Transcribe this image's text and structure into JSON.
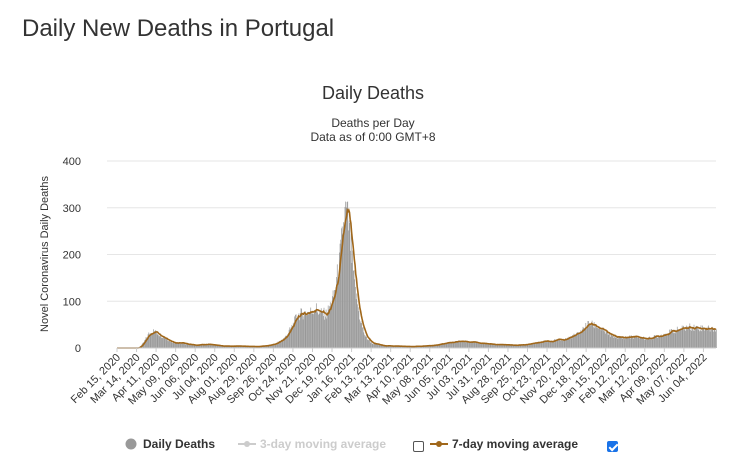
{
  "page_title": "Daily New Deaths in Portugal",
  "chart_data": {
    "type": "bar",
    "title": "Daily Deaths",
    "subtitle_lines": [
      "Deaths per Day",
      "Data as of 0:00 GMT+8"
    ],
    "ylabel": "Novel Coronavirus Daily Deaths",
    "xlabel": "",
    "ylim": [
      0,
      400
    ],
    "yticks": [
      0,
      100,
      200,
      300,
      400
    ],
    "grid": true,
    "x_start": "2020-02-15",
    "x_end": "2022-06-22",
    "x_tick_labels": [
      "Feb 15, 2020",
      "Mar 14, 2020",
      "Apr 11, 2020",
      "May 09, 2020",
      "Jun 06, 2020",
      "Jul 04, 2020",
      "Aug 01, 2020",
      "Aug 29, 2020",
      "Sep 26, 2020",
      "Oct 24, 2020",
      "Nov 21, 2020",
      "Dec 19, 2020",
      "Jan 16, 2021",
      "Feb 13, 2021",
      "Mar 13, 2021",
      "Apr 10, 2021",
      "May 08, 2021",
      "Jun 05, 2021",
      "Jul 03, 2021",
      "Jul 31, 2021",
      "Aug 28, 2021",
      "Sep 25, 2021",
      "Oct 23, 2021",
      "Nov 20, 2021",
      "Dec 18, 2021",
      "Jan 15, 2022",
      "Feb 12, 2022",
      "Mar 12, 2022",
      "Apr 09, 2022",
      "May 07, 2022",
      "Jun 04, 2022"
    ],
    "series": [
      {
        "name": "Daily Deaths",
        "kind": "bar",
        "color": "#999999",
        "anchor_points": [
          {
            "day": 0,
            "value": 0
          },
          {
            "day": 30,
            "value": 0
          },
          {
            "day": 37,
            "value": 10
          },
          {
            "day": 45,
            "value": 30
          },
          {
            "day": 52,
            "value": 36
          },
          {
            "day": 60,
            "value": 30
          },
          {
            "day": 70,
            "value": 20
          },
          {
            "day": 80,
            "value": 12
          },
          {
            "day": 95,
            "value": 10
          },
          {
            "day": 110,
            "value": 6
          },
          {
            "day": 130,
            "value": 8
          },
          {
            "day": 150,
            "value": 4
          },
          {
            "day": 175,
            "value": 4
          },
          {
            "day": 200,
            "value": 3
          },
          {
            "day": 215,
            "value": 5
          },
          {
            "day": 228,
            "value": 10
          },
          {
            "day": 240,
            "value": 22
          },
          {
            "day": 250,
            "value": 45
          },
          {
            "day": 258,
            "value": 70
          },
          {
            "day": 268,
            "value": 75
          },
          {
            "day": 278,
            "value": 78
          },
          {
            "day": 283,
            "value": 88
          },
          {
            "day": 290,
            "value": 75
          },
          {
            "day": 300,
            "value": 72
          },
          {
            "day": 310,
            "value": 110
          },
          {
            "day": 318,
            "value": 180
          },
          {
            "day": 323,
            "value": 250
          },
          {
            "day": 327,
            "value": 290
          },
          {
            "day": 330,
            "value": 275
          },
          {
            "day": 335,
            "value": 210
          },
          {
            "day": 340,
            "value": 130
          },
          {
            "day": 348,
            "value": 60
          },
          {
            "day": 355,
            "value": 25
          },
          {
            "day": 365,
            "value": 10
          },
          {
            "day": 380,
            "value": 5
          },
          {
            "day": 420,
            "value": 3
          },
          {
            "day": 450,
            "value": 5
          },
          {
            "day": 470,
            "value": 10
          },
          {
            "day": 490,
            "value": 14
          },
          {
            "day": 510,
            "value": 12
          },
          {
            "day": 530,
            "value": 9
          },
          {
            "day": 550,
            "value": 7
          },
          {
            "day": 570,
            "value": 6
          },
          {
            "day": 590,
            "value": 8
          },
          {
            "day": 610,
            "value": 14
          },
          {
            "day": 640,
            "value": 18
          },
          {
            "day": 660,
            "value": 30
          },
          {
            "day": 675,
            "value": 52
          },
          {
            "day": 685,
            "value": 48
          },
          {
            "day": 695,
            "value": 38
          },
          {
            "day": 705,
            "value": 28
          },
          {
            "day": 720,
            "value": 22
          },
          {
            "day": 740,
            "value": 24
          },
          {
            "day": 760,
            "value": 20
          },
          {
            "day": 780,
            "value": 28
          },
          {
            "day": 800,
            "value": 38
          },
          {
            "day": 820,
            "value": 45
          },
          {
            "day": 858,
            "value": 40
          }
        ]
      },
      {
        "name": "3-day moving average",
        "kind": "line",
        "color": "#cccccc",
        "visible": false
      },
      {
        "name": "7-day moving average",
        "kind": "line",
        "color": "#a0671a",
        "visible": true
      }
    ]
  },
  "legend": {
    "items": [
      {
        "label": "Daily Deaths",
        "checkbox": null
      },
      {
        "label": "3-day moving average",
        "checkbox": false
      },
      {
        "label": "7-day moving average",
        "checkbox": true
      }
    ]
  }
}
